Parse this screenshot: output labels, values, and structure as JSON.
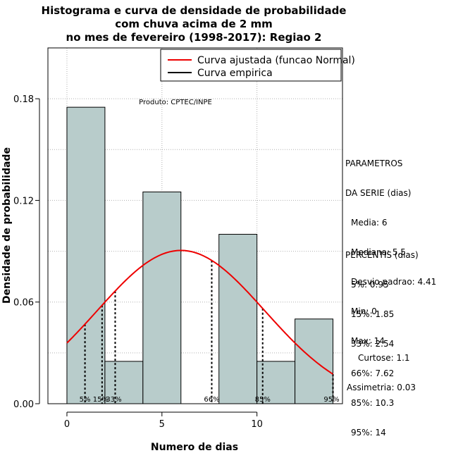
{
  "chart_data": {
    "type": "histogram",
    "title": [
      "Histograma e curva de densidade de probabilidade",
      "com chuva acima de 2 mm",
      "no mes de fevereiro (1998-2017): Regiao 2"
    ],
    "xlabel": "Numero de dias",
    "ylabel": "Densidade de probabilidade",
    "xlim": [
      -1,
      14.5
    ],
    "ylim": [
      0,
      0.21
    ],
    "x_ticks": [
      0,
      5,
      10
    ],
    "y_ticks": [
      0.0,
      0.06,
      0.12,
      0.18
    ],
    "y_tick_labels": [
      "0.00",
      "0.06",
      "0.12",
      "0.18"
    ],
    "bins": [
      {
        "x0": 0,
        "x1": 2,
        "density": 0.175
      },
      {
        "x0": 2,
        "x1": 4,
        "density": 0.025
      },
      {
        "x0": 4,
        "x1": 6,
        "density": 0.125
      },
      {
        "x0": 6,
        "x1": 8,
        "density": 0.0
      },
      {
        "x0": 8,
        "x1": 10,
        "density": 0.1
      },
      {
        "x0": 10,
        "x1": 12,
        "density": 0.025
      },
      {
        "x0": 12,
        "x1": 14,
        "density": 0.05
      }
    ],
    "normal_fit": {
      "mean": 6,
      "sd": 4.41,
      "x_range": [
        0,
        14
      ]
    },
    "percentile_lines": [
      {
        "label": "5%",
        "x": 0.95
      },
      {
        "label": "15%",
        "x": 1.85
      },
      {
        "label": "33%",
        "x": 2.54
      },
      {
        "label": "66%",
        "x": 7.62
      },
      {
        "label": "85%",
        "x": 10.3
      },
      {
        "label": "95%",
        "x": 14
      }
    ],
    "legend": [
      {
        "label": "Curva ajustada (funcao Normal)",
        "color": "#ee0000"
      },
      {
        "label": "Curva empirica",
        "color": "#000000"
      }
    ],
    "annotation": "Produto: CPTEC/INPE",
    "bar_color": "#b8cccb",
    "curve_color": "#ee0000"
  },
  "params": {
    "heading": [
      "PARAMETROS",
      "DA SERIE (dias)"
    ],
    "items": [
      "Media: 6",
      "Mediana: 5.5",
      "Desvio padrao: 4.41",
      "Min: 0",
      "Max: 14"
    ]
  },
  "percentis": {
    "heading": "PERCENTIS (dias)",
    "items": [
      "5%: 0.95",
      "15%: 1.85",
      "33%: 2.54",
      "66%: 7.62",
      "85%: 10.3",
      "95%: 14"
    ]
  },
  "shape": {
    "items": [
      "Curtose: 1.1",
      "Assimetria: 0.03"
    ]
  }
}
